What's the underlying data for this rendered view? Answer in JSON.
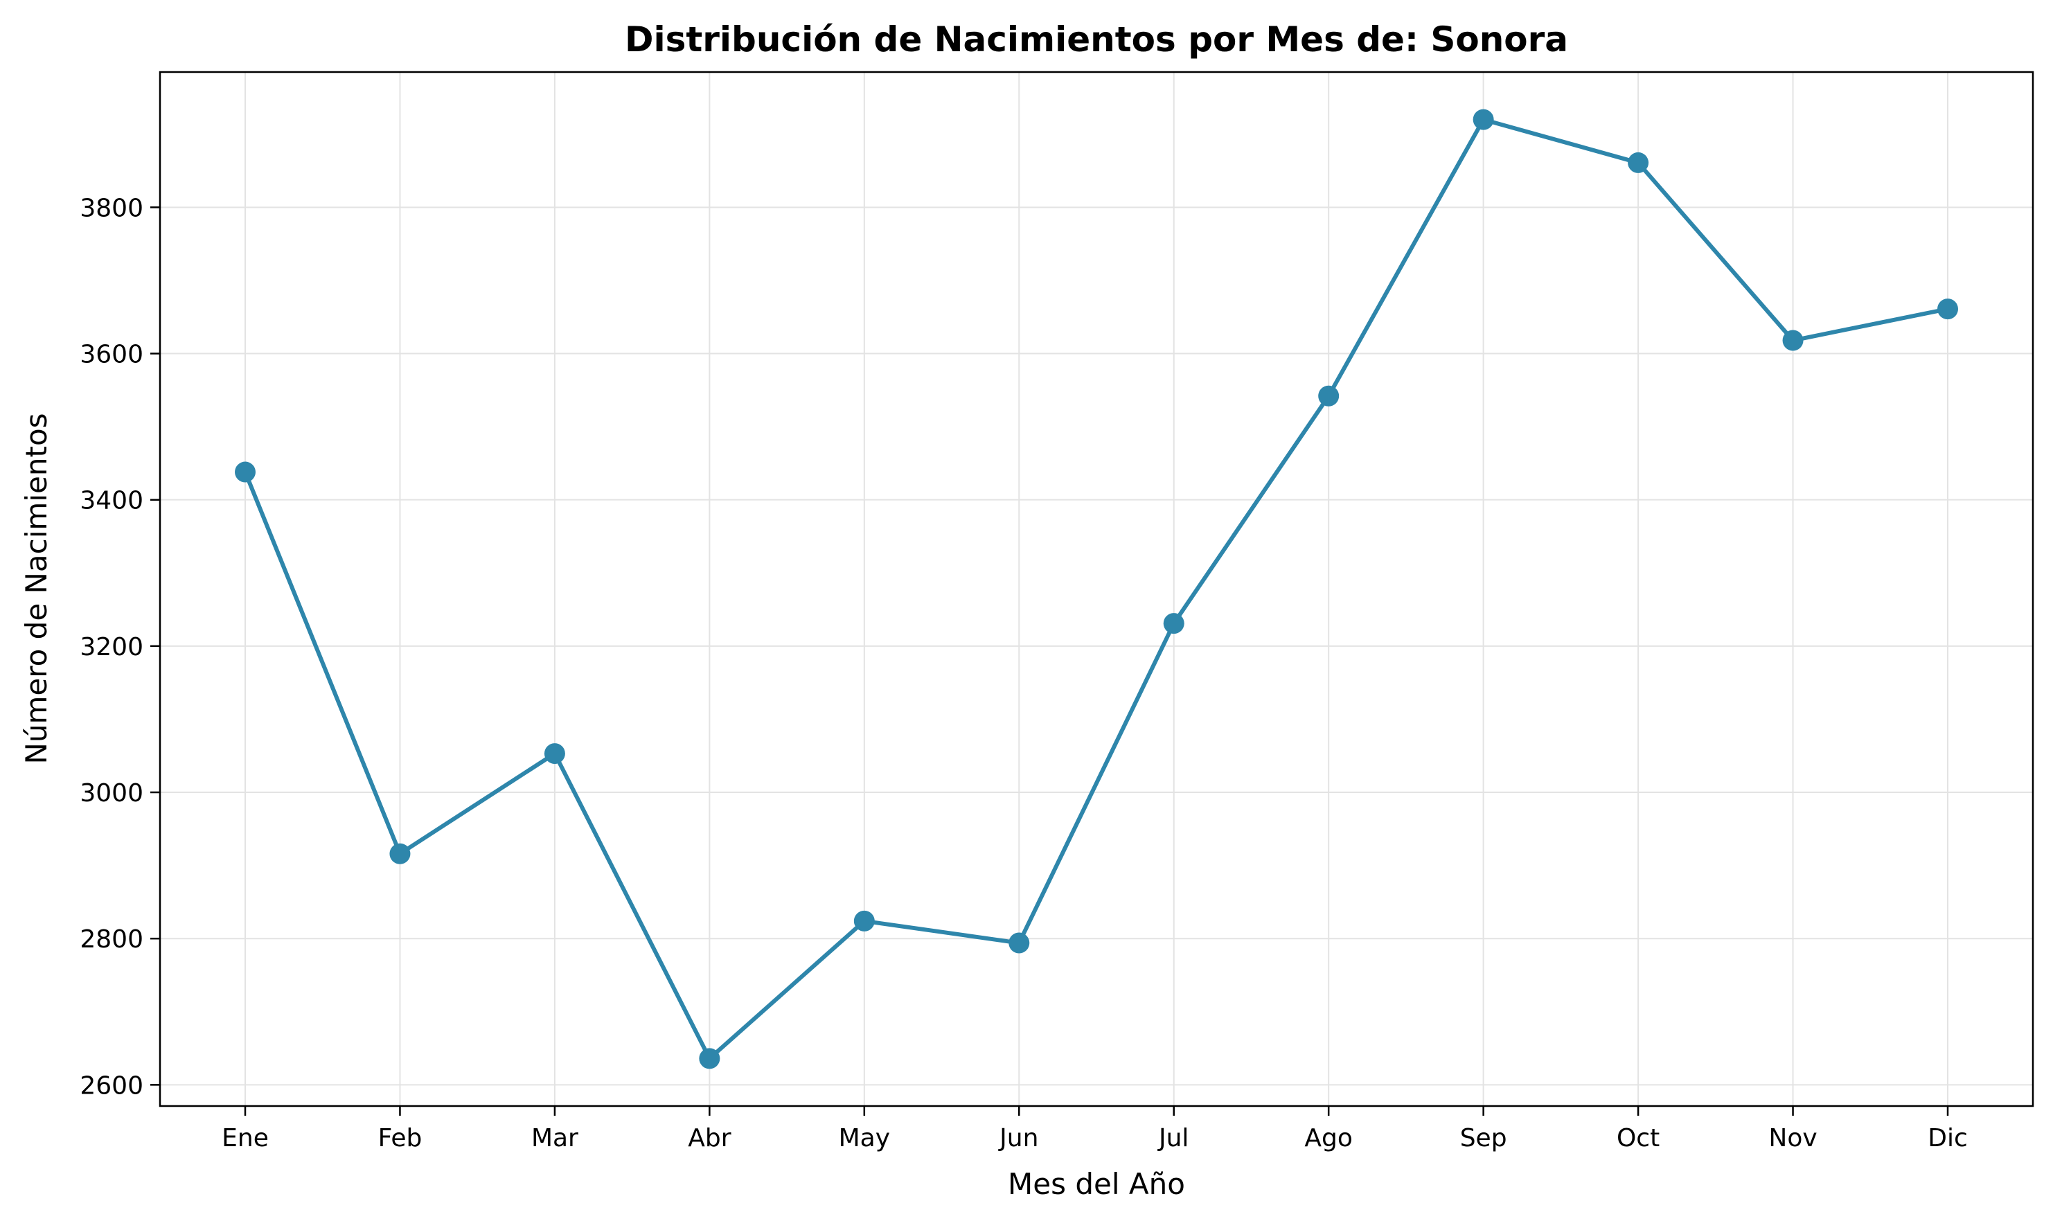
{
  "chart_data": {
    "type": "line",
    "title": "Distribución de Nacimientos por Mes de: Sonora",
    "xlabel": "Mes del Año",
    "ylabel": "Número de Nacimientos",
    "categories": [
      "Ene",
      "Feb",
      "Mar",
      "Abr",
      "May",
      "Jun",
      "Jul",
      "Ago",
      "Sep",
      "Oct",
      "Nov",
      "Dic"
    ],
    "series": [
      {
        "values": [
          3438,
          2916,
          3053,
          2636,
          2824,
          2794,
          3231,
          3542,
          3920,
          3861,
          3618,
          3661
        ]
      }
    ],
    "yticks": [
      2600,
      2800,
      3000,
      3200,
      3400,
      3600,
      3800
    ],
    "ylim": [
      2571,
      3985
    ],
    "grid": true,
    "line_color": "#2e86ab",
    "marker": "circle"
  }
}
